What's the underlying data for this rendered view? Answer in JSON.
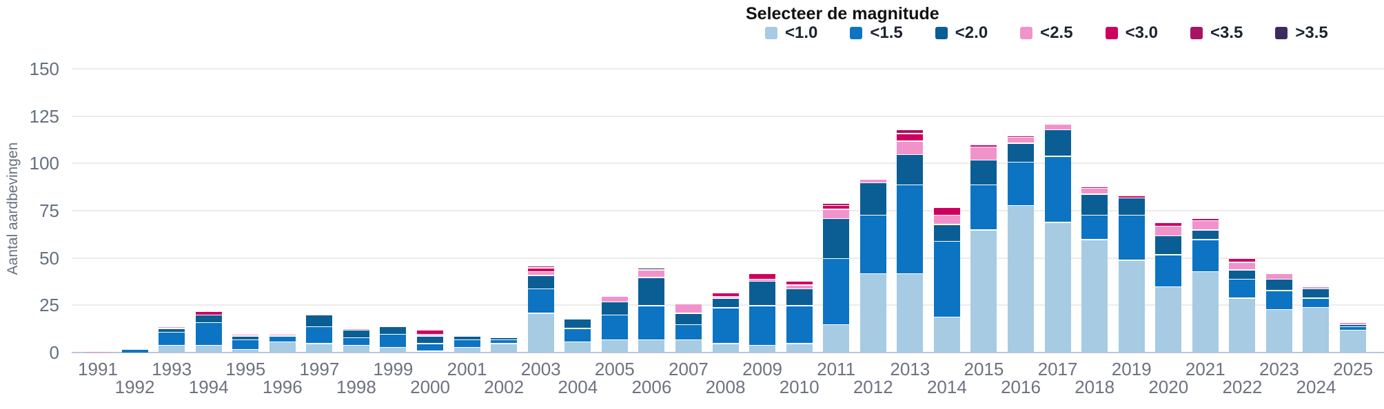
{
  "legend": {
    "title": "Selecteer de magnitude"
  },
  "axes": {
    "ylabel": "Aantal aardbevingen",
    "y_ticks": [
      0,
      25,
      50,
      75,
      100,
      125,
      150
    ]
  },
  "colors": {
    "grid": "#ebebeb",
    "baseline": "#b9c5db",
    "axis_text": "#64707e"
  },
  "chart_data": {
    "type": "bar",
    "stacked": true,
    "title": "Selecteer de magnitude",
    "xlabel": "",
    "ylabel": "Aantal aardbevingen",
    "ylim": [
      0,
      150
    ],
    "grid": true,
    "legend_position": "top-right",
    "categories": [
      1991,
      1992,
      1993,
      1994,
      1995,
      1996,
      1997,
      1998,
      1999,
      2000,
      2001,
      2002,
      2003,
      2004,
      2005,
      2006,
      2007,
      2008,
      2009,
      2010,
      2011,
      2012,
      2013,
      2014,
      2015,
      2016,
      2017,
      2018,
      2019,
      2020,
      2021,
      2022,
      2023,
      2024,
      2025
    ],
    "series": [
      {
        "name": "<1.0",
        "color": "#a6cbe3",
        "values": [
          0,
          0,
          4,
          4,
          2,
          6,
          5,
          4,
          3,
          1,
          3,
          5,
          21,
          6,
          7,
          7,
          7,
          5,
          4,
          5,
          15,
          42,
          42,
          19,
          65,
          78,
          69,
          60,
          49,
          35,
          43,
          29,
          23,
          24,
          12
        ]
      },
      {
        "name": "<1.5",
        "color": "#0c74c2",
        "values": [
          0,
          2,
          7,
          12,
          5,
          3,
          9,
          4,
          7,
          4,
          4,
          2,
          13,
          7,
          13,
          18,
          8,
          19,
          21,
          20,
          35,
          31,
          47,
          40,
          24,
          23,
          35,
          13,
          24,
          17,
          17,
          10,
          10,
          5,
          2
        ]
      },
      {
        "name": "<2.0",
        "color": "#0b5e94",
        "values": [
          0,
          0,
          2,
          4,
          2,
          0,
          6,
          4,
          4,
          4,
          2,
          1,
          7,
          5,
          7,
          15,
          6,
          5,
          13,
          9,
          21,
          17,
          16,
          9,
          13,
          10,
          14,
          11,
          9,
          10,
          5,
          5,
          6,
          5,
          1
        ]
      },
      {
        "name": "<2.5",
        "color": "#f193cb",
        "values": [
          1,
          0,
          1,
          0,
          1,
          1,
          0,
          1,
          0,
          1,
          0,
          0,
          2,
          0,
          3,
          4,
          5,
          1,
          1,
          2,
          5,
          2,
          7,
          5,
          7,
          3,
          3,
          3,
          0,
          5,
          5,
          4,
          3,
          1,
          1
        ]
      },
      {
        "name": "<3.0",
        "color": "#ce005f",
        "values": [
          0,
          0,
          0,
          2,
          0,
          0,
          0,
          0,
          0,
          2,
          0,
          0,
          2,
          0,
          0,
          0,
          0,
          2,
          3,
          2,
          2,
          0,
          4,
          4,
          1,
          1,
          0,
          1,
          1,
          2,
          1,
          2,
          0,
          0,
          0
        ]
      },
      {
        "name": "<3.5",
        "color": "#a81366",
        "values": [
          0,
          0,
          0,
          0,
          0,
          0,
          0,
          0,
          0,
          0,
          0,
          0,
          1,
          0,
          0,
          0,
          0,
          0,
          0,
          0,
          1,
          0,
          2,
          0,
          0,
          0,
          0,
          0,
          0,
          0,
          0,
          0,
          0,
          0,
          0
        ]
      },
      {
        "name": ">3.5",
        "color": "#3e2a5f",
        "values": [
          0,
          0,
          0,
          0,
          0,
          0,
          0,
          0,
          0,
          0,
          0,
          0,
          0,
          0,
          0,
          1,
          0,
          0,
          0,
          0,
          0,
          0,
          0,
          0,
          0,
          0,
          0,
          0,
          0,
          0,
          0,
          0,
          0,
          0,
          0
        ]
      }
    ]
  }
}
